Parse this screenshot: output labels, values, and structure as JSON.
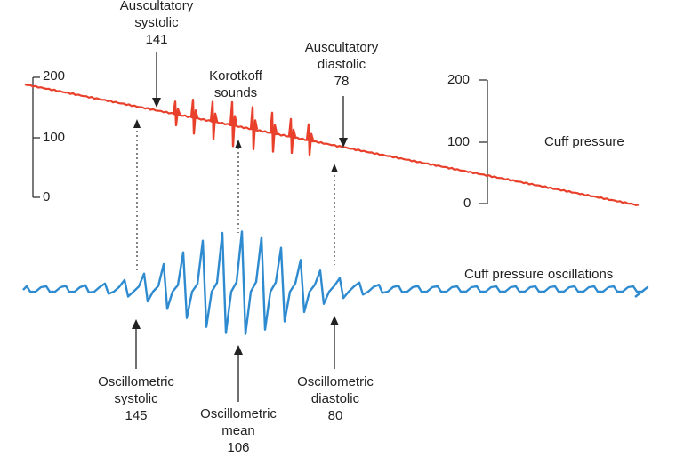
{
  "colors": {
    "cuff_pressure": "#e8402a",
    "oscillations": "#2f8bd0",
    "korotkoff": "#e8402a",
    "axis": "#333333",
    "background": "#ffffff"
  },
  "left_axis": {
    "ticks": [
      "200",
      "100",
      "0"
    ]
  },
  "right_axis": {
    "ticks": [
      "200",
      "100",
      "0"
    ]
  },
  "labels": {
    "auscultatory_systolic": {
      "line1": "Auscultatory",
      "line2": "systolic",
      "value": "141"
    },
    "korotkoff": {
      "line1": "Korotkoff",
      "line2": "sounds"
    },
    "auscultatory_diastolic": {
      "line1": "Auscultatory",
      "line2": "diastolic",
      "value": "78"
    },
    "cuff_pressure": "Cuff pressure",
    "cuff_oscillations": "Cuff pressure oscillations",
    "oscillometric_systolic": {
      "line1": "Oscillometric",
      "line2": "systolic",
      "value": "145"
    },
    "oscillometric_mean": {
      "line1": "Oscillometric",
      "line2": "mean",
      "value": "106"
    },
    "oscillometric_diastolic": {
      "line1": "Oscillometric",
      "line2": "diastolic",
      "value": "80"
    }
  }
}
